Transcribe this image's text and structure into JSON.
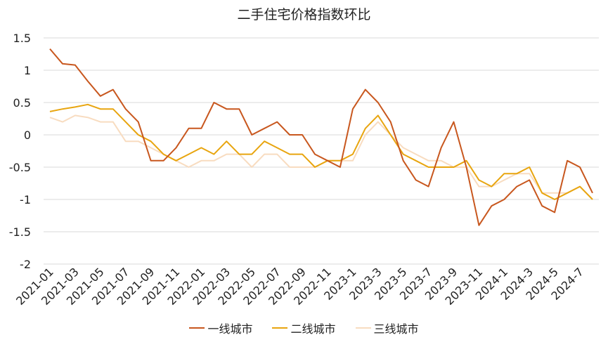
{
  "chart_data": {
    "type": "line",
    "title": "二手住宅价格指数环比",
    "xlabel": "",
    "ylabel": "",
    "ylim": [
      -2,
      1.5
    ],
    "yticks": [
      1.5,
      1,
      0.5,
      0,
      -0.5,
      -1,
      -1.5,
      -2
    ],
    "ytick_labels": [
      "1.5",
      "1",
      "0.5",
      "0",
      "-0.5",
      "-1",
      "-1.5",
      "-2"
    ],
    "grid": true,
    "legend_position": "bottom",
    "x": [
      "2021-01",
      "2021-02",
      "2021-03",
      "2021-04",
      "2021-05",
      "2021-06",
      "2021-07",
      "2021-08",
      "2021-09",
      "2021-10",
      "2021-11",
      "2021-12",
      "2022-01",
      "2022-02",
      "2022-03",
      "2022-04",
      "2022-05",
      "2022-06",
      "2022-07",
      "2022-08",
      "2022-09",
      "2022-10",
      "2022-11",
      "2022-12",
      "2023-1",
      "2023-2",
      "2023-3",
      "2023-4",
      "2023-5",
      "2023-6",
      "2023-7",
      "2023-8",
      "2023-9",
      "2023-10",
      "2023-11",
      "2023-12",
      "2024-1",
      "2024-2",
      "2024-3",
      "2024-4",
      "2024-5",
      "2024-6",
      "2024-7",
      "2024-8"
    ],
    "xtick_labels": [
      "2021-01",
      "2021-03",
      "2021-05",
      "2021-07",
      "2021-09",
      "2021-11",
      "2022-01",
      "2022-03",
      "2022-05",
      "2022-07",
      "2022-09",
      "2022-11",
      "2023-1",
      "2023-3",
      "2023-5",
      "2023-7",
      "2023-9",
      "2023-11",
      "2024-1",
      "2024-3",
      "2024-5",
      "2024-7"
    ],
    "series": [
      {
        "name": "一线城市",
        "color": "#c8571e",
        "values": [
          1.33,
          1.1,
          1.08,
          0.83,
          0.6,
          0.7,
          0.4,
          0.2,
          -0.4,
          -0.4,
          -0.2,
          0.1,
          0.1,
          0.5,
          0.4,
          0.4,
          0.0,
          0.1,
          0.2,
          0.0,
          0.0,
          -0.3,
          -0.4,
          -0.5,
          0.4,
          0.7,
          0.5,
          0.2,
          -0.4,
          -0.7,
          -0.8,
          -0.2,
          0.2,
          -0.5,
          -1.4,
          -1.1,
          -1.0,
          -0.8,
          -0.7,
          -1.1,
          -1.2,
          -0.4,
          -0.5,
          -0.9
        ]
      },
      {
        "name": "二线城市",
        "color": "#e8a50f",
        "values": [
          0.36,
          0.4,
          0.43,
          0.47,
          0.4,
          0.4,
          0.2,
          0.0,
          -0.1,
          -0.3,
          -0.4,
          -0.3,
          -0.2,
          -0.3,
          -0.1,
          -0.3,
          -0.3,
          -0.1,
          -0.2,
          -0.3,
          -0.3,
          -0.5,
          -0.4,
          -0.4,
          -0.3,
          0.1,
          0.3,
          0.0,
          -0.3,
          -0.4,
          -0.5,
          -0.5,
          -0.5,
          -0.4,
          -0.7,
          -0.8,
          -0.6,
          -0.6,
          -0.5,
          -0.9,
          -1.0,
          -0.9,
          -0.8,
          -1.0
        ]
      },
      {
        "name": "三线城市",
        "color": "#f8dcc0",
        "values": [
          0.27,
          0.2,
          0.3,
          0.27,
          0.2,
          0.2,
          -0.1,
          -0.1,
          -0.2,
          -0.3,
          -0.4,
          -0.5,
          -0.4,
          -0.4,
          -0.3,
          -0.3,
          -0.5,
          -0.3,
          -0.3,
          -0.5,
          -0.5,
          -0.5,
          -0.4,
          -0.4,
          -0.4,
          0.0,
          0.2,
          0.0,
          -0.2,
          -0.3,
          -0.4,
          -0.4,
          -0.5,
          -0.5,
          -0.8,
          -0.8,
          -0.7,
          -0.6,
          -0.6,
          -0.9,
          -0.9,
          -0.9,
          -0.8,
          -1.0
        ]
      }
    ]
  }
}
